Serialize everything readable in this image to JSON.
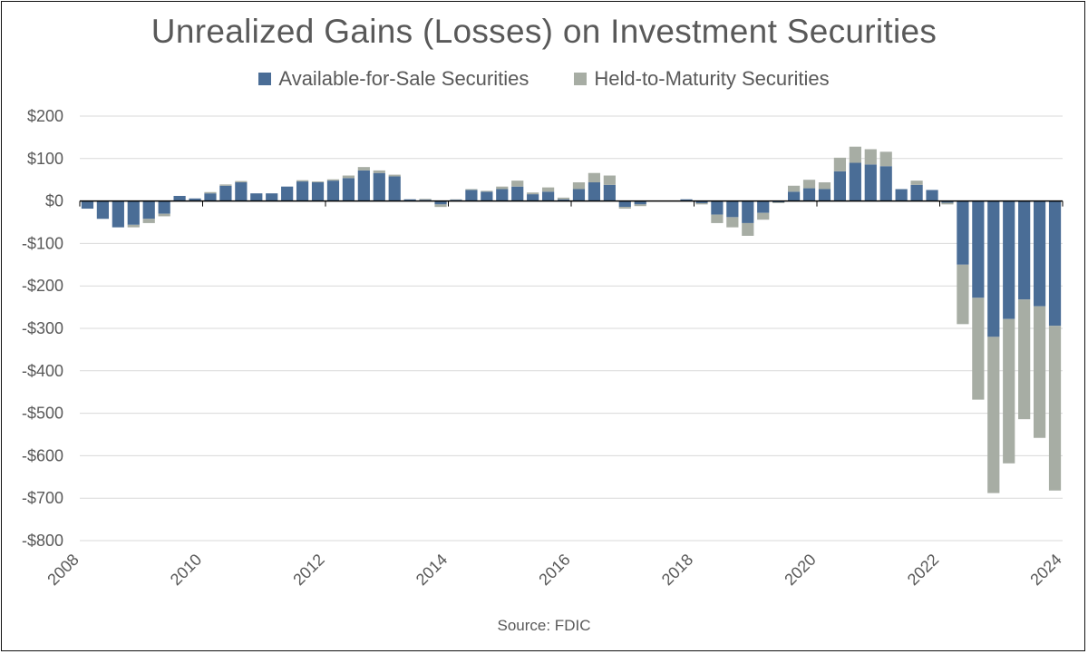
{
  "chart_data": {
    "type": "bar",
    "stacked": true,
    "title": "Unrealized Gains (Losses) on Investment Securities",
    "source": "Source: FDIC",
    "xlabel": "",
    "ylabel": "",
    "ylim": [
      -800,
      200
    ],
    "yticks": [
      200,
      100,
      0,
      -100,
      -200,
      -300,
      -400,
      -500,
      -600,
      -700,
      -800
    ],
    "ytick_labels": [
      "$200",
      "$100",
      "$0",
      "-$100",
      "-$200",
      "-$300",
      "-$400",
      "-$500",
      "-$600",
      "-$700",
      "-$800"
    ],
    "xtick_labels": [
      "2008",
      "2010",
      "2012",
      "2014",
      "2016",
      "2018",
      "2020",
      "2022",
      "2024"
    ],
    "grid": true,
    "legend_position": "top-center",
    "colors": {
      "afs": "#4a6d96",
      "htm": "#a7ada4",
      "grid": "#d9d9d9",
      "axis": "#000000",
      "text": "#595959"
    },
    "categories": [
      "2008Q1",
      "2008Q2",
      "2008Q3",
      "2008Q4",
      "2009Q1",
      "2009Q2",
      "2009Q3",
      "2009Q4",
      "2010Q1",
      "2010Q2",
      "2010Q3",
      "2010Q4",
      "2011Q1",
      "2011Q2",
      "2011Q3",
      "2011Q4",
      "2012Q1",
      "2012Q2",
      "2012Q3",
      "2012Q4",
      "2013Q1",
      "2013Q2",
      "2013Q3",
      "2013Q4",
      "2014Q1",
      "2014Q2",
      "2014Q3",
      "2014Q4",
      "2015Q1",
      "2015Q2",
      "2015Q3",
      "2015Q4",
      "2016Q1",
      "2016Q2",
      "2016Q3",
      "2016Q4",
      "2017Q1",
      "2017Q2",
      "2017Q3",
      "2017Q4",
      "2018Q1",
      "2018Q2",
      "2018Q3",
      "2018Q4",
      "2019Q1",
      "2019Q2",
      "2019Q3",
      "2019Q4",
      "2020Q1",
      "2020Q2",
      "2020Q3",
      "2020Q4",
      "2021Q1",
      "2021Q2",
      "2021Q3",
      "2021Q4",
      "2022Q1",
      "2022Q2",
      "2022Q3",
      "2022Q4",
      "2023Q1",
      "2023Q2",
      "2023Q3",
      "2023Q4"
    ],
    "series": [
      {
        "name": "Available-for-Sale Securities",
        "values": [
          -18,
          -42,
          -62,
          -56,
          -42,
          -30,
          12,
          6,
          18,
          36,
          44,
          18,
          18,
          34,
          46,
          44,
          48,
          54,
          72,
          66,
          58,
          4,
          3,
          -8,
          3,
          26,
          22,
          28,
          34,
          16,
          22,
          4,
          28,
          44,
          38,
          -14,
          -8,
          0,
          0,
          4,
          -5,
          -32,
          -38,
          -52,
          -28,
          -3,
          22,
          30,
          28,
          70,
          90,
          86,
          82,
          28,
          38,
          26,
          -4,
          -150,
          -228,
          -320,
          -278,
          -232,
          -248,
          -294
        ]
      },
      {
        "name": "Held-to-Maturity Securities",
        "values": [
          0,
          0,
          0,
          -6,
          -10,
          -6,
          0,
          0,
          3,
          3,
          3,
          0,
          0,
          0,
          3,
          2,
          3,
          6,
          8,
          6,
          4,
          0,
          2,
          -6,
          1,
          2,
          2,
          6,
          14,
          4,
          10,
          4,
          16,
          22,
          22,
          -4,
          -4,
          0,
          0,
          0,
          -3,
          -20,
          -24,
          -30,
          -16,
          -2,
          14,
          20,
          16,
          32,
          38,
          36,
          34,
          0,
          10,
          0,
          -4,
          -140,
          -240,
          -368,
          -340,
          -282,
          -310,
          -388
        ]
      }
    ]
  }
}
